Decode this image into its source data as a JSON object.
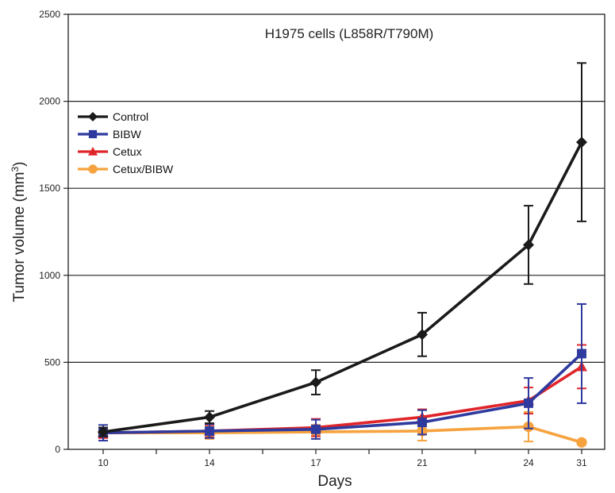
{
  "chart_data": {
    "type": "line",
    "title": "H1975 cells (L858R/T790M)",
    "xlabel": "Days",
    "ylabel_main": "Tumor volume (mm",
    "ylabel_sup": "3",
    "ylabel_close": ")",
    "x": [
      "10",
      "14",
      "17",
      "21",
      "24",
      "31"
    ],
    "ylim": [
      0,
      2500
    ],
    "yticks": [
      "0",
      "500",
      "1000",
      "1500",
      "2000",
      "2500"
    ],
    "grid": "horizontal",
    "legend_position": "top-left",
    "series": [
      {
        "name": "Control",
        "color": "#1a1a1a",
        "marker": "diamond",
        "values": [
          100,
          185,
          385,
          660,
          1175,
          1765
        ],
        "error": [
          25,
          35,
          70,
          125,
          225,
          455
        ]
      },
      {
        "name": "BIBW",
        "color": "#2e3a9e",
        "marker": "square",
        "values": [
          95,
          105,
          115,
          155,
          265,
          550
        ],
        "error": [
          45,
          40,
          55,
          70,
          145,
          285
        ]
      },
      {
        "name": "Cetux",
        "color": "#e0252a",
        "marker": "triangle",
        "values": [
          95,
          105,
          125,
          185,
          280,
          475
        ],
        "error": [
          30,
          35,
          50,
          45,
          75,
          125
        ]
      },
      {
        "name": "Cetux/BIBW",
        "color": "#f6a33f",
        "marker": "circle",
        "values": [
          95,
          95,
          100,
          105,
          130,
          40
        ],
        "error": [
          25,
          35,
          40,
          55,
          85,
          0
        ]
      }
    ]
  }
}
